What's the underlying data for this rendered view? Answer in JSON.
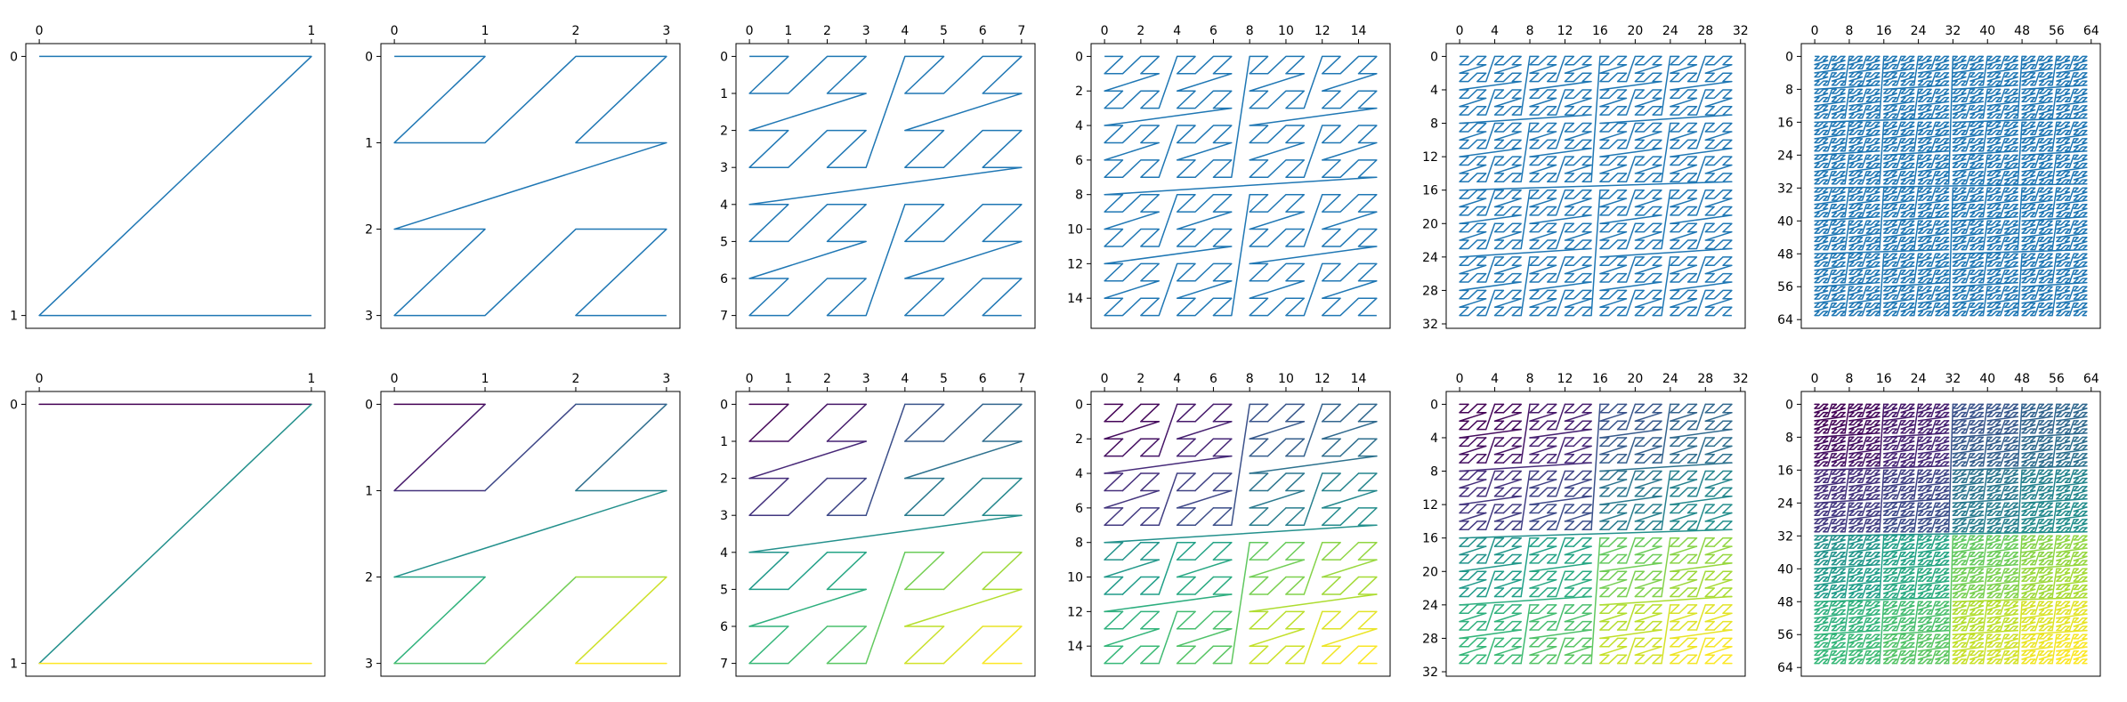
{
  "figure": {
    "background": "#ffffff"
  },
  "chart_data": [
    {
      "type": "line",
      "n": 2,
      "x_ticks": [
        0,
        1
      ],
      "y_ticks": [
        0,
        1
      ],
      "xlim": [
        0,
        1
      ],
      "ylim": [
        1,
        0
      ],
      "series": [
        {
          "x": [
            0,
            1,
            0,
            1
          ],
          "y": [
            0,
            0,
            1,
            1
          ]
        }
      ],
      "color_mode": "single",
      "line_color": "#1f77b4",
      "grid": false
    },
    {
      "type": "line",
      "n": 4,
      "x_ticks": [
        0,
        1,
        2,
        3
      ],
      "y_ticks": [
        0,
        1,
        2,
        3
      ],
      "xlim": [
        0,
        3
      ],
      "ylim": [
        3,
        0
      ],
      "series": [
        {
          "x": [
            0,
            1,
            0,
            1,
            2,
            3,
            2,
            3,
            0,
            1,
            0,
            1,
            2,
            3,
            2,
            3
          ],
          "y": [
            0,
            0,
            1,
            1,
            0,
            0,
            1,
            1,
            2,
            2,
            3,
            3,
            2,
            2,
            3,
            3
          ]
        }
      ],
      "color_mode": "single",
      "line_color": "#1f77b4",
      "grid": false
    },
    {
      "type": "line",
      "n": 8,
      "x_ticks": [
        0,
        1,
        2,
        3,
        4,
        5,
        6,
        7
      ],
      "y_ticks": [
        0,
        1,
        2,
        3,
        4,
        5,
        6,
        7
      ],
      "xlim": [
        0,
        7
      ],
      "ylim": [
        7,
        0
      ],
      "series": [
        {
          "x": [
            0,
            1,
            0,
            1,
            2,
            3,
            2,
            3,
            0,
            1,
            0,
            1,
            2,
            3,
            2,
            3,
            4,
            5,
            4,
            5,
            6,
            7,
            6,
            7,
            4,
            5,
            4,
            5,
            6,
            7,
            6,
            7,
            0,
            1,
            0,
            1,
            2,
            3,
            2,
            3,
            0,
            1,
            0,
            1,
            2,
            3,
            2,
            3,
            4,
            5,
            4,
            5,
            6,
            7,
            6,
            7,
            4,
            5,
            4,
            5,
            6,
            7,
            6,
            7
          ],
          "y": [
            0,
            0,
            1,
            1,
            0,
            0,
            1,
            1,
            2,
            2,
            3,
            3,
            2,
            2,
            3,
            3,
            0,
            0,
            1,
            1,
            0,
            0,
            1,
            1,
            2,
            2,
            3,
            3,
            2,
            2,
            3,
            3,
            4,
            4,
            5,
            5,
            4,
            4,
            5,
            5,
            6,
            6,
            7,
            7,
            6,
            6,
            7,
            7,
            4,
            4,
            5,
            5,
            4,
            4,
            5,
            5,
            6,
            6,
            7,
            7,
            6,
            6,
            7,
            7
          ]
        }
      ],
      "color_mode": "single",
      "line_color": "#1f77b4",
      "grid": false
    },
    {
      "type": "line",
      "n": 16,
      "x_ticks": [
        0,
        2,
        4,
        6,
        8,
        10,
        12,
        14
      ],
      "y_ticks": [
        0,
        2,
        4,
        6,
        8,
        10,
        12,
        14
      ],
      "xlim": [
        0,
        15
      ],
      "ylim": [
        15,
        0
      ],
      "curve": "z-order",
      "color_mode": "single",
      "line_color": "#1f77b4",
      "grid": false
    },
    {
      "type": "line",
      "n": 32,
      "x_ticks": [
        0,
        4,
        8,
        12,
        16,
        20,
        24,
        28,
        32
      ],
      "y_ticks": [
        0,
        4,
        8,
        12,
        16,
        20,
        24,
        28,
        32
      ],
      "xlim": [
        0,
        31
      ],
      "ylim": [
        31,
        0
      ],
      "curve": "z-order",
      "color_mode": "single",
      "line_color": "#1f77b4",
      "grid": false
    },
    {
      "type": "line",
      "n": 64,
      "x_ticks": [
        0,
        8,
        16,
        24,
        32,
        40,
        48,
        56,
        64
      ],
      "y_ticks": [
        0,
        8,
        16,
        24,
        32,
        40,
        48,
        56,
        64
      ],
      "xlim": [
        0,
        63
      ],
      "ylim": [
        63,
        0
      ],
      "curve": "z-order",
      "color_mode": "single",
      "line_color": "#1f77b4",
      "grid": false
    },
    {
      "type": "line",
      "n": 2,
      "x_ticks": [
        0,
        1
      ],
      "y_ticks": [
        0,
        1
      ],
      "xlim": [
        0,
        1
      ],
      "ylim": [
        1,
        0
      ],
      "series": [
        {
          "x": [
            0,
            1,
            0,
            1
          ],
          "y": [
            0,
            0,
            1,
            1
          ]
        }
      ],
      "color_mode": "viridis",
      "grid": false
    },
    {
      "type": "line",
      "n": 4,
      "x_ticks": [
        0,
        1,
        2,
        3
      ],
      "y_ticks": [
        0,
        1,
        2,
        3
      ],
      "xlim": [
        0,
        3
      ],
      "ylim": [
        3,
        0
      ],
      "series": [
        {
          "x": [
            0,
            1,
            0,
            1,
            2,
            3,
            2,
            3,
            0,
            1,
            0,
            1,
            2,
            3,
            2,
            3
          ],
          "y": [
            0,
            0,
            1,
            1,
            0,
            0,
            1,
            1,
            2,
            2,
            3,
            3,
            2,
            2,
            3,
            3
          ]
        }
      ],
      "color_mode": "viridis",
      "grid": false
    },
    {
      "type": "line",
      "n": 8,
      "x_ticks": [
        0,
        1,
        2,
        3,
        4,
        5,
        6,
        7
      ],
      "y_ticks": [
        0,
        1,
        2,
        3,
        4,
        5,
        6,
        7
      ],
      "xlim": [
        0,
        7
      ],
      "ylim": [
        7,
        0
      ],
      "series": [
        {
          "x": [
            0,
            1,
            0,
            1,
            2,
            3,
            2,
            3,
            0,
            1,
            0,
            1,
            2,
            3,
            2,
            3,
            4,
            5,
            4,
            5,
            6,
            7,
            6,
            7,
            4,
            5,
            4,
            5,
            6,
            7,
            6,
            7,
            0,
            1,
            0,
            1,
            2,
            3,
            2,
            3,
            0,
            1,
            0,
            1,
            2,
            3,
            2,
            3,
            4,
            5,
            4,
            5,
            6,
            7,
            6,
            7,
            4,
            5,
            4,
            5,
            6,
            7,
            6,
            7
          ],
          "y": [
            0,
            0,
            1,
            1,
            0,
            0,
            1,
            1,
            2,
            2,
            3,
            3,
            2,
            2,
            3,
            3,
            0,
            0,
            1,
            1,
            0,
            0,
            1,
            1,
            2,
            2,
            3,
            3,
            2,
            2,
            3,
            3,
            4,
            4,
            5,
            5,
            4,
            4,
            5,
            5,
            6,
            6,
            7,
            7,
            6,
            6,
            7,
            7,
            4,
            4,
            5,
            5,
            4,
            4,
            5,
            5,
            6,
            6,
            7,
            7,
            6,
            6,
            7,
            7
          ]
        }
      ],
      "color_mode": "viridis",
      "grid": false
    },
    {
      "type": "line",
      "n": 16,
      "x_ticks": [
        0,
        2,
        4,
        6,
        8,
        10,
        12,
        14
      ],
      "y_ticks": [
        0,
        2,
        4,
        6,
        8,
        10,
        12,
        14
      ],
      "xlim": [
        0,
        15
      ],
      "ylim": [
        15,
        0
      ],
      "curve": "z-order",
      "color_mode": "viridis",
      "grid": false
    },
    {
      "type": "line",
      "n": 32,
      "x_ticks": [
        0,
        4,
        8,
        12,
        16,
        20,
        24,
        28,
        32
      ],
      "y_ticks": [
        0,
        4,
        8,
        12,
        16,
        20,
        24,
        28,
        32
      ],
      "xlim": [
        0,
        31
      ],
      "ylim": [
        31,
        0
      ],
      "curve": "z-order",
      "color_mode": "viridis",
      "grid": false
    },
    {
      "type": "line",
      "n": 64,
      "x_ticks": [
        0,
        8,
        16,
        24,
        32,
        40,
        48,
        56,
        64
      ],
      "y_ticks": [
        0,
        8,
        16,
        24,
        32,
        40,
        48,
        56,
        64
      ],
      "xlim": [
        0,
        63
      ],
      "ylim": [
        63,
        0
      ],
      "curve": "z-order",
      "color_mode": "viridis",
      "grid": false
    }
  ]
}
